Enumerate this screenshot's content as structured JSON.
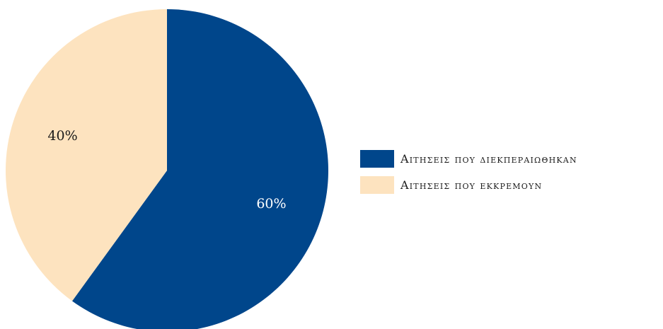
{
  "chart_data": {
    "type": "pie",
    "title": "",
    "slices": [
      {
        "label": "Αιτησεις που διεκπεραιωθηκαν",
        "value": 60,
        "display": "60%",
        "color": "#00468b",
        "label_color": "#ffffff"
      },
      {
        "label": "Αιτησεις που εκκρεμουν",
        "value": 40,
        "display": "40%",
        "color": "#fde3bf",
        "label_color": "#1a1a1a"
      }
    ],
    "start_angle": "12 o'clock",
    "direction": "clockwise",
    "legend_position": "right"
  }
}
